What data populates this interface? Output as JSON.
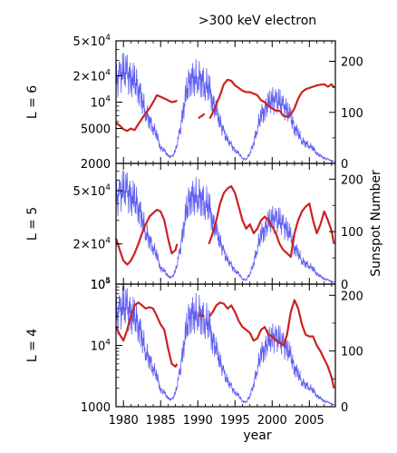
{
  "chart_data": {
    "type": "line",
    "title": ">300 keV electron",
    "xlabel": "year",
    "right_ylabel": "Sunspot Number",
    "xlim": [
      1979,
      2008.5
    ],
    "x_ticks": [
      1980,
      1985,
      1990,
      1995,
      2000,
      2005
    ],
    "series_colors": {
      "electron_flux": "#cc2222",
      "sunspot_number": "#4444ee"
    },
    "panels": [
      {
        "panel_label": "L = 6",
        "left_scale": "log",
        "ylim": [
          2000,
          50000
        ],
        "y_ticks": [
          {
            "value": 50000,
            "base": "5×10",
            "exp": "4"
          },
          {
            "value": 20000,
            "base": "2×10",
            "exp": "4"
          },
          {
            "value": 10000,
            "base": "10",
            "exp": "4"
          },
          {
            "value": 5000,
            "base": "5000",
            "exp": ""
          },
          {
            "value": 2000,
            "base": "2000",
            "exp": ""
          }
        ],
        "right_ylim": [
          0,
          240
        ],
        "right_ticks": [
          "200",
          "100",
          "0"
        ],
        "electron_flux": [
          {
            "x": [
              1979.0,
              1979.5,
              1980.0,
              1980.5,
              1981.0,
              1981.5,
              1982.0,
              1982.5,
              1983.0,
              1983.5,
              1984.0,
              1984.5,
              1985.0,
              1985.5,
              1986.0,
              1986.5,
              1987.0,
              1987.2
            ],
            "y": [
              5800,
              5400,
              4900,
              4700,
              5000,
              4800,
              5600,
              6500,
              7500,
              8500,
              10000,
              12000,
              11500,
              11000,
              10500,
              10000,
              10200,
              10500
            ]
          },
          {
            "x": [
              1990.1,
              1990.3,
              1990.6,
              1990.9
            ],
            "y": [
              6500,
              6800,
              7000,
              7400
            ]
          },
          {
            "x": [
              1991.6,
              1992.0,
              1992.5,
              1993.0,
              1993.5,
              1994.0,
              1994.5,
              1995.0,
              1995.5,
              1996.0,
              1996.5,
              1997.0,
              1997.5,
              1998.0,
              1998.5,
              1999.0,
              1999.5,
              2000.0,
              2000.5,
              2001.0,
              2001.5,
              2002.0,
              2002.5,
              2003.0,
              2003.5,
              2004.0,
              2004.5,
              2005.0,
              2005.5,
              2006.0,
              2006.5,
              2007.0,
              2007.5,
              2008.0,
              2008.3
            ],
            "y": [
              6500,
              7500,
              9500,
              12000,
              16000,
              18000,
              17500,
              15500,
              14500,
              13500,
              13000,
              13000,
              12500,
              12000,
              10500,
              10000,
              9000,
              8500,
              8000,
              8000,
              7000,
              6800,
              7200,
              8500,
              11000,
              13000,
              14000,
              14500,
              15000,
              15500,
              15800,
              16000,
              15000,
              16000,
              14500
            ]
          }
        ],
        "sunspot_number": {
          "x": [
            1979,
            1979.5,
            1980,
            1980.5,
            1981,
            1981.5,
            1982,
            1982.5,
            1983,
            1983.5,
            1984,
            1984.5,
            1985,
            1985.5,
            1986,
            1986.5,
            1987,
            1987.5,
            1988,
            1988.5,
            1989,
            1989.5,
            1990,
            1990.5,
            1991,
            1991.5,
            1992,
            1992.5,
            1993,
            1993.5,
            1994,
            1994.5,
            1995,
            1995.5,
            1996,
            1996.5,
            1997,
            1997.5,
            1998,
            1998.5,
            1999,
            1999.5,
            2000,
            2000.5,
            2001,
            2001.5,
            2002,
            2002.5,
            2003,
            2003.5,
            2004,
            2004.5,
            2005,
            2005.5,
            2006,
            2006.5,
            2007,
            2007.5,
            2008,
            2008.5
          ],
          "y": [
            160,
            170,
            180,
            175,
            165,
            160,
            150,
            125,
            100,
            85,
            70,
            55,
            30,
            25,
            15,
            12,
            25,
            55,
            100,
            140,
            170,
            165,
            170,
            165,
            155,
            150,
            120,
            100,
            80,
            60,
            45,
            35,
            25,
            20,
            10,
            8,
            20,
            40,
            70,
            95,
            105,
            115,
            125,
            120,
            120,
            110,
            105,
            90,
            70,
            60,
            45,
            40,
            35,
            30,
            20,
            15,
            10,
            8,
            5,
            3
          ]
        }
      },
      {
        "panel_label": "L = 5",
        "left_scale": "log",
        "ylim": [
          10000,
          80000
        ],
        "y_ticks": [
          {
            "value": 50000,
            "base": "5×10",
            "exp": "4"
          },
          {
            "value": 20000,
            "base": "2×10",
            "exp": "4"
          },
          {
            "value": 10000,
            "base": "10",
            "exp": "4"
          }
        ],
        "right_ylim": [
          0,
          230
        ],
        "right_ticks": [
          "200",
          "100",
          "0"
        ],
        "electron_flux": [
          {
            "x": [
              1979.0,
              1979.5,
              1980.0,
              1980.5,
              1981.0,
              1981.5,
              1982.0,
              1982.5,
              1983.0,
              1983.5,
              1984.0,
              1984.5,
              1985.0,
              1985.5,
              1986.0,
              1986.5,
              1987.0,
              1987.2
            ],
            "y": [
              22000,
              18000,
              15000,
              14000,
              15000,
              17000,
              20000,
              24000,
              28000,
              32000,
              34000,
              36000,
              35000,
              30000,
              22000,
              17000,
              18000,
              20000
            ]
          },
          {
            "x": [
              1991.5,
              1992.0,
              1992.5,
              1993.0,
              1993.5,
              1994.0,
              1994.5,
              1995.0,
              1995.5,
              1996.0,
              1996.5,
              1997.0,
              1997.5,
              1998.0,
              1998.5,
              1999.0,
              1999.5,
              2000.0,
              2000.5,
              2001.0,
              2001.5,
              2002.0,
              2002.5,
              2003.0,
              2003.5,
              2004.0,
              2004.5,
              2005.0,
              2005.5,
              2006.0,
              2006.5,
              2007.0,
              2007.5,
              2008.0,
              2008.3
            ],
            "y": [
              20000,
              24000,
              30000,
              40000,
              48000,
              52000,
              54000,
              48000,
              38000,
              30000,
              26000,
              28000,
              24000,
              26000,
              30000,
              32000,
              30000,
              27000,
              24000,
              20000,
              18000,
              17000,
              16000,
              24000,
              30000,
              35000,
              38000,
              40000,
              30000,
              24000,
              28000,
              35000,
              30000,
              25000,
              20000
            ]
          }
        ],
        "sunspot_number": {
          "x": [
            1979,
            1979.5,
            1980,
            1980.5,
            1981,
            1981.5,
            1982,
            1982.5,
            1983,
            1983.5,
            1984,
            1984.5,
            1985,
            1985.5,
            1986,
            1986.5,
            1987,
            1987.5,
            1988,
            1988.5,
            1989,
            1989.5,
            1990,
            1990.5,
            1991,
            1991.5,
            1992,
            1992.5,
            1993,
            1993.5,
            1994,
            1994.5,
            1995,
            1995.5,
            1996,
            1996.5,
            1997,
            1997.5,
            1998,
            1998.5,
            1999,
            1999.5,
            2000,
            2000.5,
            2001,
            2001.5,
            2002,
            2002.5,
            2003,
            2003.5,
            2004,
            2004.5,
            2005,
            2005.5,
            2006,
            2006.5,
            2007,
            2007.5,
            2008,
            2008.5
          ],
          "y": [
            160,
            170,
            180,
            175,
            165,
            160,
            150,
            125,
            100,
            85,
            70,
            55,
            30,
            25,
            15,
            12,
            25,
            55,
            100,
            140,
            170,
            165,
            170,
            165,
            155,
            150,
            120,
            100,
            80,
            60,
            45,
            35,
            25,
            20,
            10,
            8,
            20,
            40,
            70,
            95,
            105,
            115,
            125,
            120,
            120,
            110,
            105,
            90,
            70,
            60,
            45,
            40,
            35,
            30,
            20,
            15,
            10,
            8,
            5,
            3
          ]
        }
      },
      {
        "panel_label": "L = 4",
        "left_scale": "log",
        "ylim": [
          1000,
          100000
        ],
        "y_ticks": [
          {
            "value": 100000,
            "base": "10",
            "exp": "5"
          },
          {
            "value": 10000,
            "base": "10",
            "exp": "4"
          },
          {
            "value": 1000,
            "base": "1000",
            "exp": ""
          }
        ],
        "right_ylim": [
          0,
          220
        ],
        "right_ticks": [
          "200",
          "100",
          "0"
        ],
        "electron_flux": [
          {
            "x": [
              1979.0,
              1979.5,
              1980.0,
              1980.5,
              1981.0,
              1981.5,
              1982.0,
              1982.5,
              1983.0,
              1983.5,
              1984.0,
              1984.5,
              1985.0,
              1985.5,
              1986.0,
              1986.5,
              1987.0,
              1987.2
            ],
            "y": [
              20000,
              15000,
              12000,
              18000,
              30000,
              45000,
              50000,
              45000,
              40000,
              42000,
              40000,
              30000,
              22000,
              18000,
              9000,
              5000,
              4500,
              5000
            ]
          },
          {
            "x": [
              1990.1,
              1990.3,
              1990.6,
              1990.9
            ],
            "y": [
              30000,
              31000,
              30500,
              30000
            ]
          },
          {
            "x": [
              1991.6,
              1992.0,
              1992.5,
              1993.0,
              1993.5,
              1994.0,
              1994.5,
              1995.0,
              1995.5,
              1996.0,
              1996.5,
              1997.0,
              1997.5,
              1998.0,
              1998.5,
              1999.0,
              1999.5,
              2000.0,
              2000.5,
              2001.0,
              2001.5,
              2002.0,
              2002.5,
              2003.0,
              2003.5,
              2004.0,
              2004.5,
              2005.0,
              2005.5,
              2006.0,
              2006.5,
              2007.0,
              2007.5,
              2008.0,
              2008.3
            ],
            "y": [
              30000,
              35000,
              45000,
              50000,
              48000,
              40000,
              45000,
              35000,
              25000,
              20000,
              18000,
              16000,
              12000,
              13000,
              18000,
              20000,
              15000,
              14000,
              12000,
              11000,
              10000,
              15000,
              35000,
              55000,
              40000,
              22000,
              15000,
              14000,
              14000,
              10000,
              8000,
              6000,
              4500,
              3000,
              2000
            ]
          }
        ],
        "sunspot_number": {
          "x": [
            1979,
            1979.5,
            1980,
            1980.5,
            1981,
            1981.5,
            1982,
            1982.5,
            1983,
            1983.5,
            1984,
            1984.5,
            1985,
            1985.5,
            1986,
            1986.5,
            1987,
            1987.5,
            1988,
            1988.5,
            1989,
            1989.5,
            1990,
            1990.5,
            1991,
            1991.5,
            1992,
            1992.5,
            1993,
            1993.5,
            1994,
            1994.5,
            1995,
            1995.5,
            1996,
            1996.5,
            1997,
            1997.5,
            1998,
            1998.5,
            1999,
            1999.5,
            2000,
            2000.5,
            2001,
            2001.5,
            2002,
            2002.5,
            2003,
            2003.5,
            2004,
            2004.5,
            2005,
            2005.5,
            2006,
            2006.5,
            2007,
            2007.5,
            2008,
            2008.5
          ],
          "y": [
            160,
            170,
            180,
            175,
            165,
            160,
            150,
            125,
            100,
            85,
            70,
            55,
            30,
            25,
            15,
            12,
            25,
            55,
            100,
            140,
            170,
            165,
            170,
            165,
            155,
            150,
            120,
            100,
            80,
            60,
            45,
            35,
            25,
            20,
            10,
            8,
            20,
            40,
            70,
            95,
            105,
            115,
            125,
            120,
            120,
            110,
            105,
            90,
            70,
            60,
            45,
            40,
            35,
            30,
            20,
            15,
            10,
            8,
            5,
            3
          ]
        }
      }
    ]
  }
}
